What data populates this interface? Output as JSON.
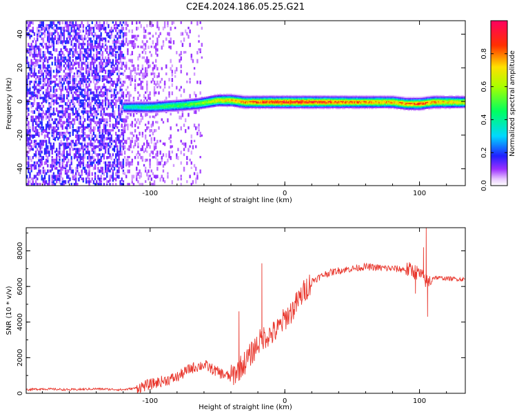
{
  "title": "C2E4.2024.186.05.25.G21",
  "chart_data": [
    {
      "type": "heatmap",
      "xlabel": "Height of straight line (km)",
      "ylabel": "Frequency (Hz)",
      "xlim": [
        -192,
        134
      ],
      "ylim": [
        -50,
        48
      ],
      "xticks": [
        -100,
        0,
        100
      ],
      "xtick_labels": [
        "-100",
        "0",
        "100"
      ],
      "yticks": [
        -40,
        -20,
        0,
        20,
        40
      ],
      "ytick_labels": [
        "-40",
        "-20",
        "0",
        "20",
        "40"
      ],
      "signal_band": {
        "x_start": -120,
        "x": [
          -120,
          -100,
          -80,
          -65,
          -50,
          -40,
          -30,
          -20,
          -10,
          0,
          20,
          40,
          60,
          80,
          90,
          100,
          110,
          120,
          134
        ],
        "center_hz": [
          -3,
          -3,
          -2,
          -1,
          1,
          1,
          0,
          0,
          0,
          0,
          0,
          0,
          0,
          0,
          -1,
          -1,
          0,
          0,
          0
        ],
        "amplitude": [
          0.35,
          0.45,
          0.5,
          0.55,
          0.7,
          0.75,
          0.8,
          0.85,
          0.9,
          0.92,
          0.9,
          0.85,
          0.8,
          0.78,
          0.8,
          0.85,
          0.8,
          0.75,
          0.7
        ]
      },
      "noise_region": {
        "x_from": -192,
        "x_to": -62,
        "amplitude_range": [
          0.05,
          0.6
        ]
      },
      "grid": false,
      "colorbar": {
        "label": "Normalized spectral amplitude",
        "ticks": [
          0.0,
          0.2,
          0.4,
          0.6,
          0.8
        ],
        "tick_labels": [
          "0.0",
          "0.2",
          "0.4",
          "0.6",
          "0.8"
        ],
        "range": [
          0,
          1
        ],
        "colormap": "hsv-reversed (magenta-blue-cyan-green-yellow-red)"
      }
    },
    {
      "type": "line",
      "xlabel": "Height of straight line (km)",
      "ylabel": "SNR (10 * v/v)",
      "xlim": [
        -192,
        134
      ],
      "ylim": [
        0,
        9300
      ],
      "xticks": [
        -100,
        0,
        100
      ],
      "xtick_labels": [
        "-100",
        "0",
        "100"
      ],
      "yticks": [
        0,
        2000,
        4000,
        6000,
        8000
      ],
      "ytick_labels": [
        "0",
        "2000",
        "4000",
        "6000",
        "8000"
      ],
      "grid": false,
      "series": [
        {
          "color": "#e8342a",
          "x": [
            -192,
            -180,
            -160,
            -140,
            -120,
            -110,
            -100,
            -90,
            -80,
            -70,
            -60,
            -50,
            -40,
            -30,
            -25,
            -20,
            -15,
            -10,
            -5,
            0,
            5,
            10,
            15,
            20,
            30,
            40,
            50,
            60,
            70,
            80,
            90,
            95,
            100,
            104,
            106,
            110,
            120,
            134
          ],
          "y": [
            200,
            250,
            200,
            250,
            200,
            300,
            500,
            700,
            900,
            1400,
            1600,
            1200,
            900,
            1700,
            2200,
            2800,
            3200,
            3300,
            3600,
            4200,
            4600,
            5200,
            5800,
            6300,
            6700,
            6900,
            7000,
            7100,
            7050,
            7000,
            6950,
            6900,
            6700,
            6400,
            6200,
            6500,
            6450,
            6400
          ]
        }
      ],
      "spikes": [
        {
          "x": -17,
          "y": 7300
        },
        {
          "x": -34,
          "y": 4600
        },
        {
          "x": 103,
          "y": 8200
        },
        {
          "x": 105,
          "y": 9300
        },
        {
          "x": 106,
          "y": 4300
        },
        {
          "x": 97,
          "y": 5600
        }
      ]
    }
  ]
}
